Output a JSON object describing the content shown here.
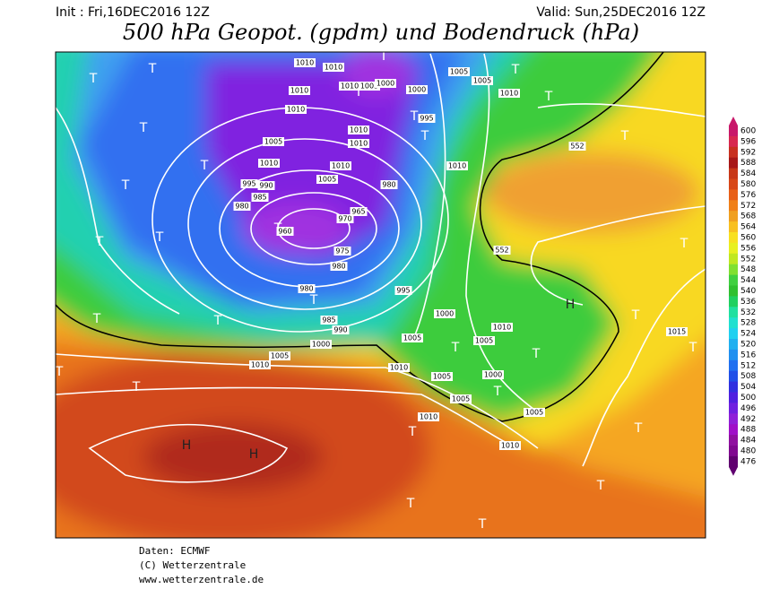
{
  "header": {
    "init": "Init : Fri,16DEC2016 12Z",
    "valid": "Valid: Sun,25DEC2016 12Z",
    "title": "500 hPa Geopot. (gpdm) und Bodendruck (hPa)"
  },
  "footer": {
    "source": "Daten: ECMWF",
    "copyright": "(C) Wetterzentrale",
    "url": "www.wetterzentrale.de"
  },
  "colorbar": {
    "labels": [
      600,
      596,
      592,
      588,
      584,
      580,
      576,
      572,
      568,
      564,
      560,
      556,
      552,
      548,
      544,
      540,
      536,
      532,
      528,
      524,
      520,
      516,
      512,
      508,
      504,
      500,
      496,
      492,
      488,
      484,
      480,
      476
    ],
    "colors": [
      "#c8186a",
      "#d82850",
      "#c83020",
      "#a81818",
      "#c83818",
      "#d84818",
      "#e86018",
      "#f08018",
      "#f0a020",
      "#f8c020",
      "#f8e020",
      "#e8f020",
      "#c0e820",
      "#80e030",
      "#40d040",
      "#30c030",
      "#20d060",
      "#20e0a0",
      "#20e0d0",
      "#20d0f0",
      "#20b0f0",
      "#2090f0",
      "#2070f0",
      "#2050e8",
      "#3030e0",
      "#5020e0",
      "#7020e0",
      "#9020d8",
      "#a010c8",
      "#9010a0",
      "#800890",
      "#600070"
    ]
  },
  "map": {
    "centers": [
      "H",
      "H",
      "H",
      "T",
      "T",
      "T",
      "T",
      "T",
      "T",
      "T",
      "T",
      "T",
      "T",
      "T",
      "T",
      "T",
      "T",
      "T",
      "T",
      "T",
      "T",
      "T",
      "T",
      "T",
      "T",
      "T",
      "T",
      "T",
      "T",
      "T",
      "T",
      "T",
      "T",
      "T"
    ],
    "isobar_labels": [
      "1010",
      "1010",
      "1010",
      "1010",
      "1010",
      "1010",
      "1010",
      "1010",
      "1010",
      "1010",
      "1010",
      "1010",
      "1010",
      "1010",
      "1010",
      "1010",
      "1005",
      "1005",
      "1005",
      "1005",
      "1005",
      "1005",
      "1005",
      "1005",
      "1005",
      "1005",
      "1005",
      "1000",
      "1000",
      "1000",
      "1000",
      "1000",
      "995",
      "995",
      "995",
      "990",
      "990",
      "985",
      "985",
      "980",
      "980",
      "980",
      "980",
      "975",
      "970",
      "965",
      "960",
      "1015",
      "552",
      "552"
    ]
  }
}
